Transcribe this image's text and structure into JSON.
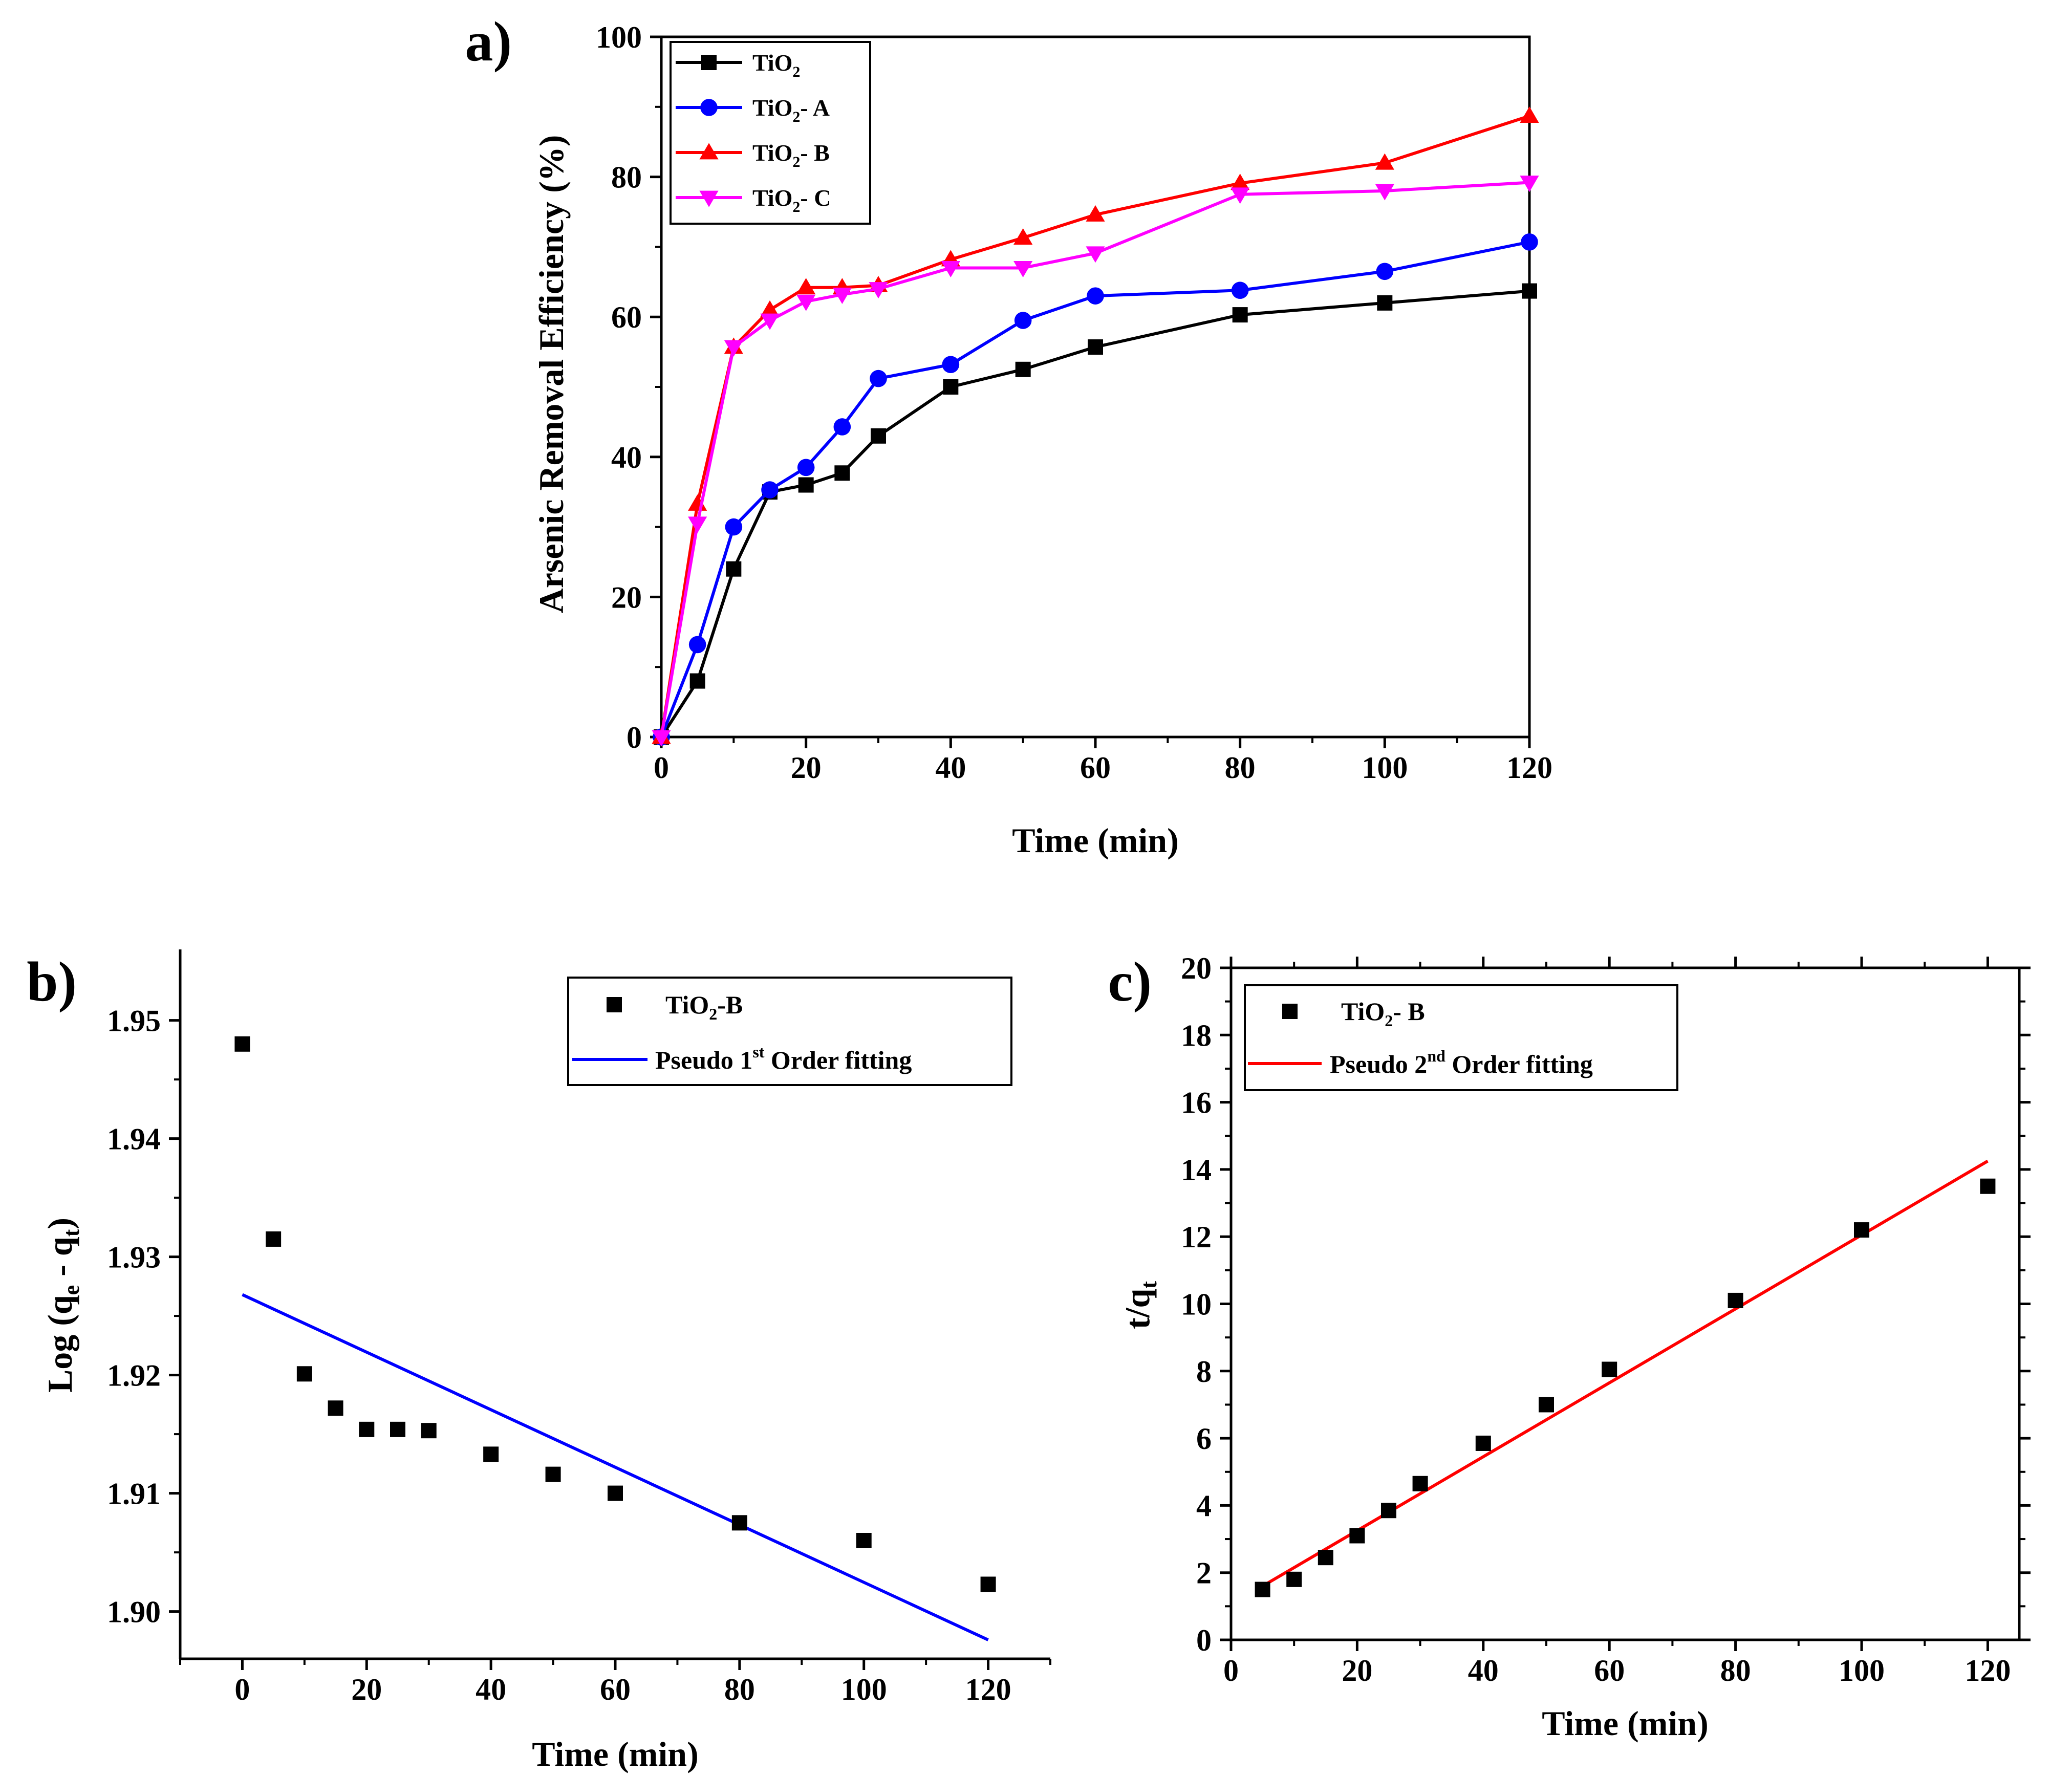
{
  "chart_data": [
    {
      "panel_label": "a)",
      "type": "line",
      "xlabel": "Time (min)",
      "ylabel": "Arsenic Removal Efficiency (%)",
      "xlim": [
        0,
        120
      ],
      "ylim": [
        0,
        100
      ],
      "xticks": [
        0,
        20,
        40,
        60,
        80,
        100,
        120
      ],
      "yticks": [
        0,
        20,
        40,
        60,
        80,
        100
      ],
      "x": [
        0,
        5,
        10,
        15,
        20,
        25,
        30,
        40,
        50,
        60,
        80,
        100,
        120
      ],
      "legend_position": "top-left",
      "series": [
        {
          "name": "TiO",
          "subscript": "2",
          "suffix": "",
          "color": "#000000",
          "marker": "square",
          "values": [
            0,
            8,
            24,
            35,
            36,
            37.7,
            43,
            50,
            52.5,
            55.7,
            60.3,
            62,
            63.7
          ]
        },
        {
          "name": "TiO",
          "subscript": "2",
          "suffix": "- A",
          "color": "#0000ff",
          "marker": "circle",
          "values": [
            0,
            13.2,
            30,
            35.3,
            38.5,
            44.3,
            51.2,
            53.2,
            59.5,
            63,
            63.8,
            66.5,
            70.7
          ]
        },
        {
          "name": "TiO",
          "subscript": "2",
          "suffix": "- B",
          "color": "#ff0000",
          "marker": "triangle-up",
          "values": [
            0,
            33.3,
            55.7,
            61,
            64.2,
            64.2,
            64.5,
            68.2,
            71.3,
            74.6,
            79.1,
            82,
            88.7
          ]
        },
        {
          "name": "TiO",
          "subscript": "2",
          "suffix": "- C",
          "color": "#ff00ff",
          "marker": "triangle-down",
          "values": [
            0,
            30.5,
            55.7,
            59.5,
            62.2,
            63.2,
            64,
            67,
            67,
            69.1,
            77.5,
            78,
            79.2
          ]
        }
      ]
    },
    {
      "panel_label": "b)",
      "type": "scatter",
      "xlabel": "Time (min)",
      "ylabel": "Log (q",
      "ylabel_sub1": "e",
      "ylabel_mid": " - q",
      "ylabel_sub2": "t",
      "ylabel_end": ")",
      "xlim": [
        -10,
        130
      ],
      "ylim": [
        1.896,
        1.956
      ],
      "xticks": [
        0,
        20,
        40,
        60,
        80,
        100,
        120
      ],
      "yticks": [
        1.9,
        1.91,
        1.92,
        1.93,
        1.94,
        1.95
      ],
      "ytick_labels": [
        "1.90",
        "1.91",
        "1.92",
        "1.93",
        "1.94",
        "1.95"
      ],
      "legend_position": "top-right",
      "points": {
        "name": "TiO",
        "subscript": "2",
        "suffix": "-B",
        "color": "#000000",
        "marker": "square",
        "x": [
          0,
          5,
          10,
          15,
          20,
          25,
          30,
          40,
          50,
          60,
          80,
          100,
          120
        ],
        "y": [
          1.948,
          1.9315,
          1.9201,
          1.9172,
          1.9154,
          1.9154,
          1.9153,
          1.9133,
          1.9116,
          1.91,
          1.9075,
          1.906,
          1.9023
        ]
      },
      "fit": {
        "label_pre": "Pseudo 1",
        "label_sup": "st",
        "label_post": " Order fitting",
        "color": "#0000ff",
        "x": [
          0,
          120
        ],
        "y": [
          1.9268,
          1.8976
        ]
      }
    },
    {
      "panel_label": "c)",
      "type": "scatter",
      "xlabel": "Time (min)",
      "ylabel": "t/q",
      "ylabel_sub": "t",
      "xlim": [
        0,
        125
      ],
      "ylim": [
        0,
        20
      ],
      "xticks": [
        0,
        20,
        40,
        60,
        80,
        100,
        120
      ],
      "yticks": [
        0,
        2,
        4,
        6,
        8,
        10,
        12,
        14,
        16,
        18,
        20
      ],
      "legend_position": "top-left",
      "points": {
        "name": "TiO",
        "subscript": "2",
        "suffix": "- B",
        "color": "#000000",
        "marker": "square",
        "x": [
          5,
          10,
          15,
          20,
          25,
          30,
          40,
          50,
          60,
          80,
          100,
          120
        ],
        "y": [
          1.5,
          1.8,
          2.45,
          3.1,
          3.85,
          4.65,
          5.85,
          7.0,
          8.05,
          10.1,
          12.2,
          13.5
        ]
      },
      "fit": {
        "label_pre": "Pseudo 2",
        "label_sup": "nd",
        "label_post": " Order fitting",
        "color": "#ff0000",
        "x": [
          5,
          120
        ],
        "y": [
          1.6,
          14.25
        ]
      }
    }
  ]
}
